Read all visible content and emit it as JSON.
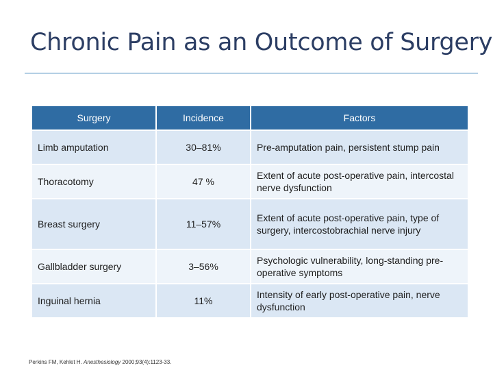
{
  "title": "Chronic Pain as an Outcome of Surgery",
  "table": {
    "headers": [
      "Surgery",
      "Incidence",
      "Factors"
    ],
    "rows": [
      {
        "surgery": "Limb amputation",
        "incidence": "30–81%",
        "factors": "Pre-amputation pain, persistent stump pain"
      },
      {
        "surgery": "Thoracotomy",
        "incidence": "47 %",
        "factors": "Extent of acute post-operative pain, intercostal nerve dysfunction"
      },
      {
        "surgery": "Breast surgery",
        "incidence": "11–57%",
        "factors": "Extent of acute post-operative pain, type of surgery, intercostobrachial nerve injury"
      },
      {
        "surgery": "Gallbladder surgery",
        "incidence": "3–56%",
        "factors": "Psychologic vulnerability, long-standing pre-operative symptoms"
      },
      {
        "surgery": "Inguinal hernia",
        "incidence": "11%",
        "factors": "Intensity of early post-operative pain, nerve dysfunction"
      }
    ]
  },
  "citation": {
    "authors": "Perkins FM, Kehlet H. ",
    "journal": "Anesthesiology",
    "details": " 2000;93(4):1123-33."
  }
}
